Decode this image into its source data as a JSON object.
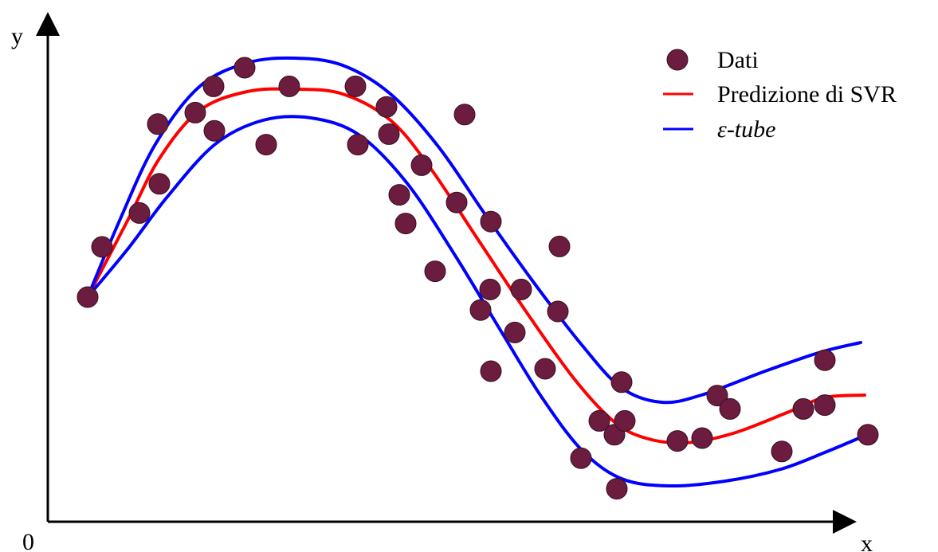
{
  "chart_data": {
    "type": "scatter",
    "origin_label": "0",
    "xlabel": "x",
    "ylabel": "y",
    "xlim": [
      0,
      100
    ],
    "ylim": [
      0,
      100
    ],
    "grid": false,
    "legend_position": "top-right",
    "legend": [
      {
        "label": "Dati",
        "kind": "marker",
        "color": "#6b1c3f"
      },
      {
        "label": "Predizione di SVR",
        "kind": "line",
        "color": "#ff0000"
      },
      {
        "label": "ε-tube",
        "kind": "line",
        "color": "#0000ff"
      }
    ],
    "series": [
      {
        "name": "Dati",
        "kind": "scatter",
        "color": "#6b1c3f",
        "points": [
          [
            5.0,
            47.0
          ],
          [
            6.8,
            57.5
          ],
          [
            11.5,
            64.6
          ],
          [
            14.0,
            70.7
          ],
          [
            13.8,
            83.2
          ],
          [
            18.5,
            85.6
          ],
          [
            20.8,
            91.1
          ],
          [
            20.9,
            81.8
          ],
          [
            24.7,
            95.0
          ],
          [
            27.4,
            78.9
          ],
          [
            30.3,
            91.1
          ],
          [
            38.6,
            91.1
          ],
          [
            38.9,
            78.9
          ],
          [
            42.5,
            86.8
          ],
          [
            42.8,
            81.1
          ],
          [
            44.1,
            68.4
          ],
          [
            44.9,
            62.4
          ],
          [
            46.9,
            74.6
          ],
          [
            48.6,
            52.4
          ],
          [
            51.3,
            66.8
          ],
          [
            52.3,
            85.2
          ],
          [
            54.3,
            44.3
          ],
          [
            55.5,
            48.6
          ],
          [
            55.6,
            62.8
          ],
          [
            55.6,
            31.5
          ],
          [
            58.6,
            39.6
          ],
          [
            59.4,
            48.6
          ],
          [
            62.4,
            32.0
          ],
          [
            64.2,
            57.6
          ],
          [
            64.0,
            44.0
          ],
          [
            66.9,
            13.3
          ],
          [
            69.2,
            21.1
          ],
          [
            71.1,
            18.2
          ],
          [
            71.4,
            6.9
          ],
          [
            72.0,
            29.2
          ],
          [
            72.4,
            21.1
          ],
          [
            79.0,
            16.9
          ],
          [
            82.1,
            17.5
          ],
          [
            84.0,
            26.4
          ],
          [
            85.6,
            23.6
          ],
          [
            92.1,
            14.7
          ],
          [
            94.8,
            23.6
          ],
          [
            97.5,
            24.4
          ],
          [
            97.5,
            33.8
          ],
          [
            102.9,
            18.2
          ]
        ]
      },
      {
        "name": "Predizione di SVR",
        "kind": "line",
        "color": "#ff0000",
        "points": [
          [
            5.0,
            47.0
          ],
          [
            10.0,
            63.0
          ],
          [
            14.0,
            76.0
          ],
          [
            19.0,
            86.0
          ],
          [
            25.0,
            90.0
          ],
          [
            31.0,
            90.5
          ],
          [
            37.0,
            89.5
          ],
          [
            43.0,
            84.0
          ],
          [
            48.0,
            74.0
          ],
          [
            54.0,
            59.0
          ],
          [
            60.0,
            44.0
          ],
          [
            66.0,
            30.0
          ],
          [
            71.0,
            21.0
          ],
          [
            75.0,
            17.5
          ],
          [
            80.0,
            16.5
          ],
          [
            86.0,
            18.5
          ],
          [
            93.0,
            23.0
          ],
          [
            97.5,
            26.0
          ],
          [
            102.5,
            26.5
          ]
        ]
      },
      {
        "name": "ε-tube",
        "kind": "line",
        "color": "#0000ff",
        "points": [
          [
            5.0,
            47.0
          ],
          [
            9.0,
            63.0
          ],
          [
            13.5,
            79.0
          ],
          [
            19.0,
            91.0
          ],
          [
            25.0,
            96.0
          ],
          [
            31.0,
            97.0
          ],
          [
            37.0,
            95.5
          ],
          [
            43.0,
            89.5
          ],
          [
            49.0,
            78.5
          ],
          [
            55.0,
            64.0
          ],
          [
            61.0,
            50.0
          ],
          [
            67.0,
            37.0
          ],
          [
            72.0,
            28.0
          ],
          [
            77.0,
            25.0
          ],
          [
            82.0,
            26.5
          ],
          [
            90.0,
            31.5
          ],
          [
            97.0,
            35.5
          ],
          [
            102.0,
            37.5
          ]
        ]
      },
      {
        "name": "ε-tube",
        "kind": "line",
        "color": "#0000ff",
        "points": [
          [
            5.0,
            47.0
          ],
          [
            10.0,
            57.0
          ],
          [
            15.0,
            68.0
          ],
          [
            21.0,
            79.0
          ],
          [
            27.0,
            84.0
          ],
          [
            33.0,
            84.5
          ],
          [
            39.0,
            81.0
          ],
          [
            45.0,
            71.0
          ],
          [
            51.0,
            56.0
          ],
          [
            57.0,
            39.5
          ],
          [
            62.0,
            26.0
          ],
          [
            67.0,
            15.0
          ],
          [
            72.0,
            9.0
          ],
          [
            78.0,
            7.5
          ],
          [
            85.0,
            8.5
          ],
          [
            92.0,
            11.0
          ],
          [
            97.5,
            14.5
          ],
          [
            102.5,
            18.0
          ]
        ]
      }
    ]
  }
}
